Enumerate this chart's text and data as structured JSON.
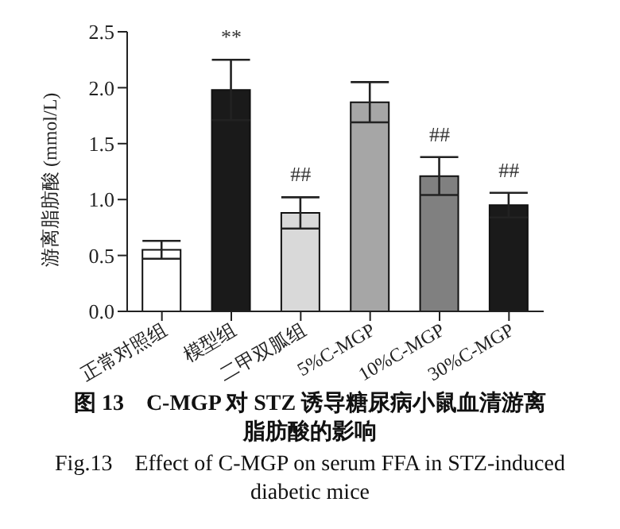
{
  "chart_data": {
    "type": "bar",
    "title": "图 13　C-MGP 对 STZ 诱导糖尿病小鼠血清游离脂肪酸的影响",
    "subtitle": "Fig.13　Effect of C-MGP on serum FFA in STZ-induced diabetic mice",
    "ylabel": "游离脂肪酸 (mmol/L)",
    "categories": [
      "正常对照组",
      "模型组",
      "二甲双胍组",
      "5%C-MGP",
      "10%C-MGP",
      "30%C-MGP"
    ],
    "values": [
      0.55,
      1.98,
      0.88,
      1.87,
      1.21,
      0.95
    ],
    "errors": [
      0.08,
      0.27,
      0.14,
      0.18,
      0.17,
      0.11
    ],
    "colors": [
      "#ffffff",
      "#1a1a1a",
      "#d9d9d9",
      "#a6a6a6",
      "#808080",
      "#1a1a1a"
    ],
    "ylim": [
      0,
      2.5
    ],
    "yticks": [
      {
        "value": 0,
        "label": "0.0"
      },
      0.5,
      {
        "value": 1,
        "label": "1.0"
      },
      1.5,
      {
        "value": 2,
        "label": "2.0"
      },
      2.5
    ],
    "annotations": [
      {
        "text": "**",
        "x": "模型组",
        "y": 1.98
      },
      {
        "text": "##",
        "x": "二甲双胍组",
        "y": 0.88
      },
      {
        "text": "##",
        "x": "10%C-MGP",
        "y": 1.21
      },
      {
        "text": "##",
        "x": "30%C-MGP",
        "y": 0.95
      }
    ],
    "grid": false,
    "legend": false
  }
}
